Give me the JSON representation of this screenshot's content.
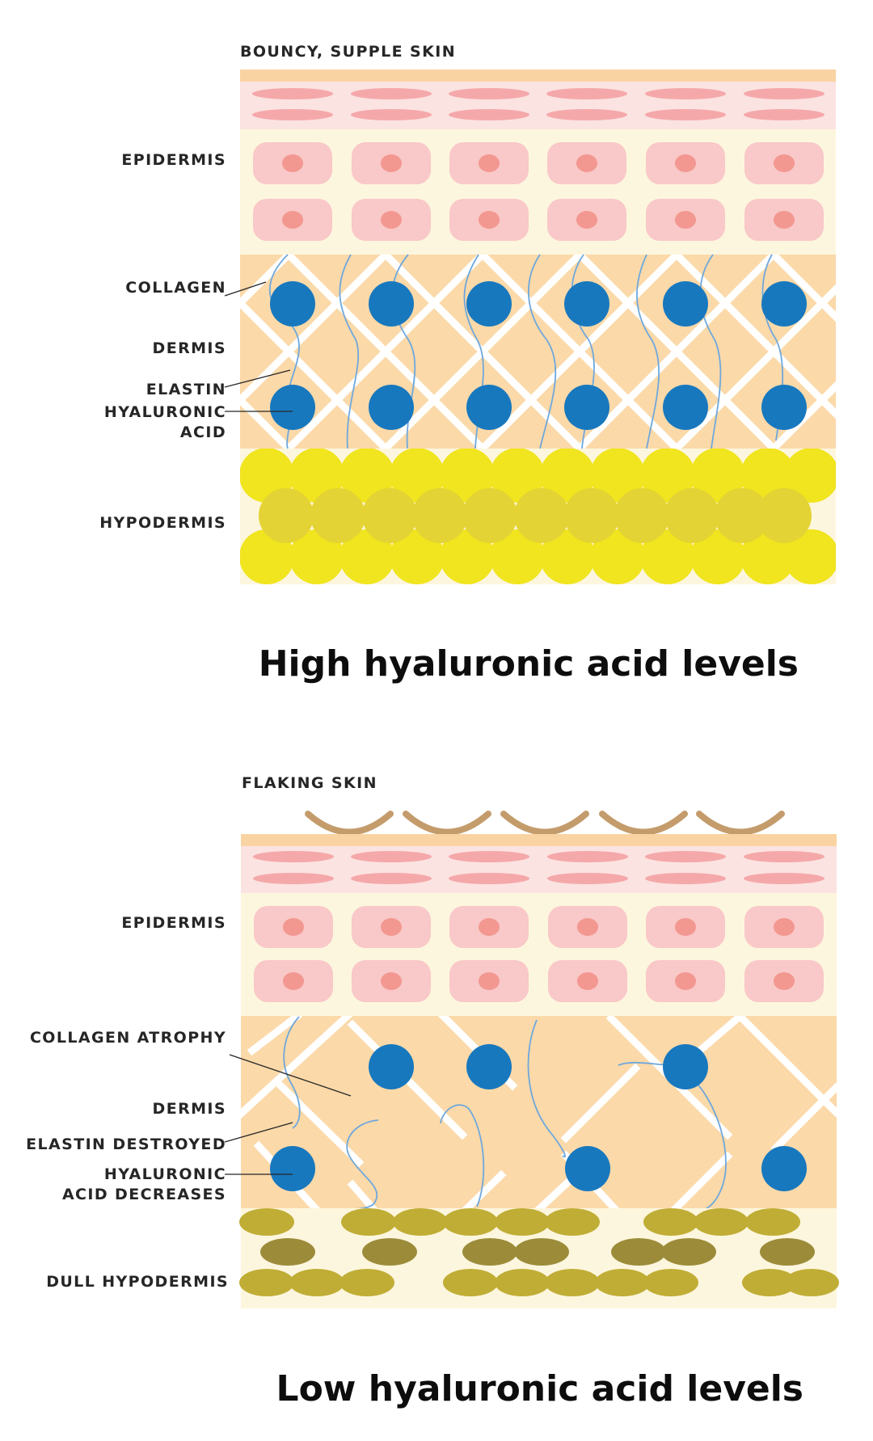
{
  "panels": {
    "high": {
      "header": "BOUNCY, SUPPLE SKIN",
      "caption": "High hyaluronic acid levels",
      "labels": {
        "epidermis": "EPIDERMIS",
        "collagen": "COLLAGEN",
        "dermis": "DERMIS",
        "elastin": "ELASTIN",
        "hyaluronic_1": "HYALURONIC",
        "hyaluronic_2": "ACID",
        "hypodermis": "HYPODERMIS"
      }
    },
    "low": {
      "header": "FLAKING SKIN",
      "caption": "Low hyaluronic acid levels",
      "labels": {
        "epidermis": "EPIDERMIS",
        "collagen": "COLLAGEN ATROPHY",
        "dermis": "DERMIS",
        "elastin": "ELASTIN DESTROYED",
        "hyaluronic_1": "HYALURONIC",
        "hyaluronic_2": "ACID DECREASES",
        "hypodermis": "DULL HYPODERMIS"
      }
    }
  },
  "colors": {
    "surface": "#fad3a2",
    "stratum": "#fbe3e1",
    "stratum_cell": "#f5a8aa",
    "epidermis_bg": "#fdf6de",
    "cell": "#f9c8c8",
    "nucleus": "#f29890",
    "dermis_bg": "#fbd9a9",
    "collagen": "#ffffff",
    "elastin": "#6fa8dc",
    "hyaluronic_acid": "#1878be",
    "fat_bright": "#f0e51e",
    "fat_dim": "#e4d334",
    "fat_dull_light": "#c0ad35",
    "fat_dull_dark": "#9c8c3a",
    "flake": "#c49c6c",
    "leader_line": "#262626"
  }
}
